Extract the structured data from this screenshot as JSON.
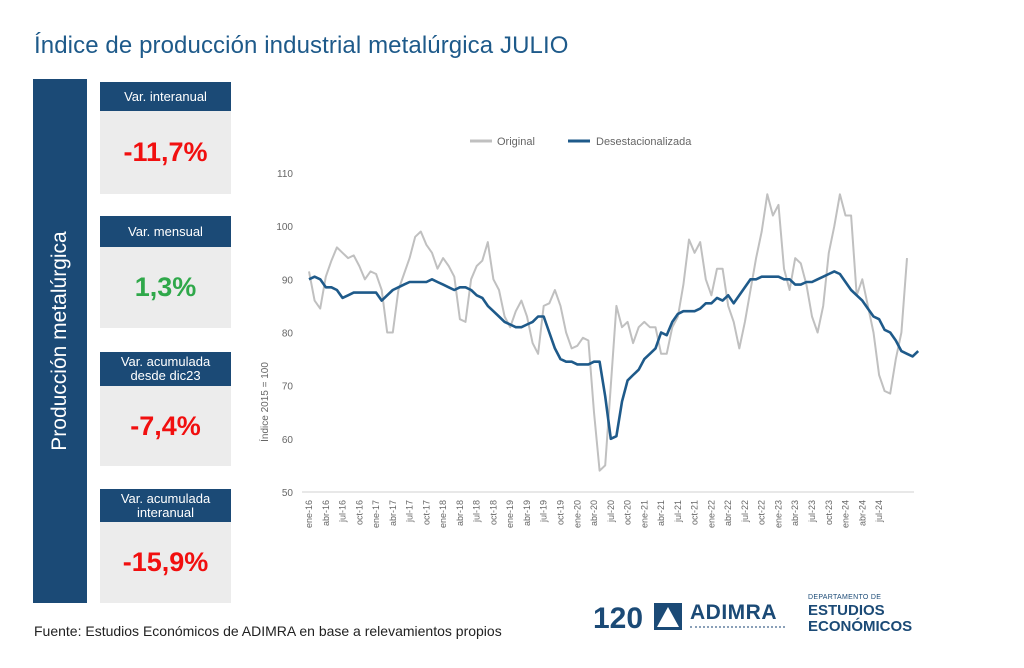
{
  "title": "Índice de producción industrial metalúrgica JULIO",
  "sidebar_label": "Producción metalúrgica",
  "cards": [
    {
      "label": "Var. interanual",
      "value": "-11,7%"
    },
    {
      "label": "Var. mensual",
      "value": "1,3%"
    },
    {
      "label": "Var. acumulada desde dic23",
      "value": "-7,4%"
    },
    {
      "label": "Var. acumulada interanual",
      "value": "-15,9%"
    }
  ],
  "colors": {
    "navy": "#1b4a76",
    "negative": "#f10f0f",
    "positive": "#2fa84a",
    "original": "#c0c0c0",
    "deseasonalized": "#1e5a8a"
  },
  "footer": "Fuente: Estudios Económicos de ADIMRA en base a relevamientos propios",
  "logos": {
    "anniversary": "120",
    "brand": "ADIMRA",
    "dept_small": "DEPARTAMENTO DE",
    "dept_line1": "ESTUDIOS",
    "dept_line2": "ECONÓMICOS"
  },
  "chart_data": {
    "type": "line",
    "ylabel": "Índice 2015 = 100",
    "ylim": [
      50,
      110
    ],
    "yticks": [
      50,
      60,
      70,
      80,
      90,
      100,
      110
    ],
    "grid": false,
    "legend_position": "top",
    "x_tick_labels": [
      "ene-16",
      "abr-16",
      "jul-16",
      "oct-16",
      "ene-17",
      "abr-17",
      "jul-17",
      "oct-17",
      "ene-18",
      "abr-18",
      "jul-18",
      "oct-18",
      "ene-19",
      "abr-19",
      "jul-19",
      "oct-19",
      "ene-20",
      "abr-20",
      "jul-20",
      "oct-20",
      "ene-21",
      "abr-21",
      "jul-21",
      "oct-21",
      "ene-22",
      "abr-22",
      "jul-22",
      "oct-22",
      "ene-23",
      "abr-23",
      "jul-23",
      "oct-23",
      "ene-24",
      "abr-24",
      "jul-24"
    ],
    "x_first": "ene-16",
    "x_last": "jul-24",
    "series": [
      {
        "name": "Original",
        "values": [
          91.5,
          86,
          84.5,
          90.5,
          93.5,
          96,
          95,
          94,
          94.5,
          92.5,
          90,
          91.5,
          91,
          88,
          80,
          80,
          88,
          91,
          94,
          98,
          99,
          96.5,
          95,
          92,
          94,
          92.5,
          90.5,
          82.5,
          82,
          90,
          92.5,
          93.5,
          97,
          90,
          88,
          83,
          81,
          84,
          86,
          83,
          78,
          76,
          85,
          85.5,
          88,
          85,
          80,
          77,
          77.5,
          79,
          78.5,
          65,
          54,
          55,
          70,
          85,
          81,
          82,
          78,
          81,
          82,
          81,
          81,
          76,
          76,
          81,
          83,
          89,
          97.5,
          95,
          97,
          90,
          87,
          92,
          92,
          85,
          82,
          77,
          82,
          88,
          94,
          99,
          106,
          102,
          104,
          92,
          88,
          94,
          93,
          89,
          83,
          80,
          85,
          95,
          100,
          106,
          102,
          102,
          87,
          90,
          85,
          80,
          72,
          69,
          68.5,
          75,
          80,
          94
        ]
      },
      {
        "name": "Desestacionalizada",
        "values": [
          90,
          90.5,
          90,
          88.5,
          88.5,
          88,
          86.5,
          87,
          87.5,
          87.5,
          87.5,
          87.5,
          87.5,
          86,
          87,
          88,
          88.5,
          89,
          89.5,
          89.5,
          89.5,
          89.5,
          90,
          89.5,
          89,
          88.5,
          88,
          88.5,
          88.5,
          88,
          87,
          86.5,
          85,
          84,
          83,
          82,
          81.5,
          81,
          81,
          81.5,
          82,
          83,
          83,
          80,
          77,
          75,
          74.5,
          74.5,
          74,
          74,
          74,
          74.5,
          74.5,
          68,
          60,
          60.5,
          67,
          71,
          72,
          73,
          75,
          76,
          77,
          80,
          79.5,
          82,
          83.5,
          84,
          84,
          84,
          84.5,
          85.5,
          85.5,
          86.5,
          86,
          87,
          85.5,
          87,
          88.5,
          90,
          90,
          90.5,
          90.5,
          90.5,
          90.5,
          90,
          90,
          89,
          89,
          89.5,
          89.5,
          90,
          90.5,
          91,
          91.5,
          91,
          89.5,
          88,
          87,
          86,
          84.5,
          83,
          82.5,
          80.5,
          80,
          78.5,
          76.5,
          76,
          75.5,
          76.5
        ]
      }
    ]
  }
}
